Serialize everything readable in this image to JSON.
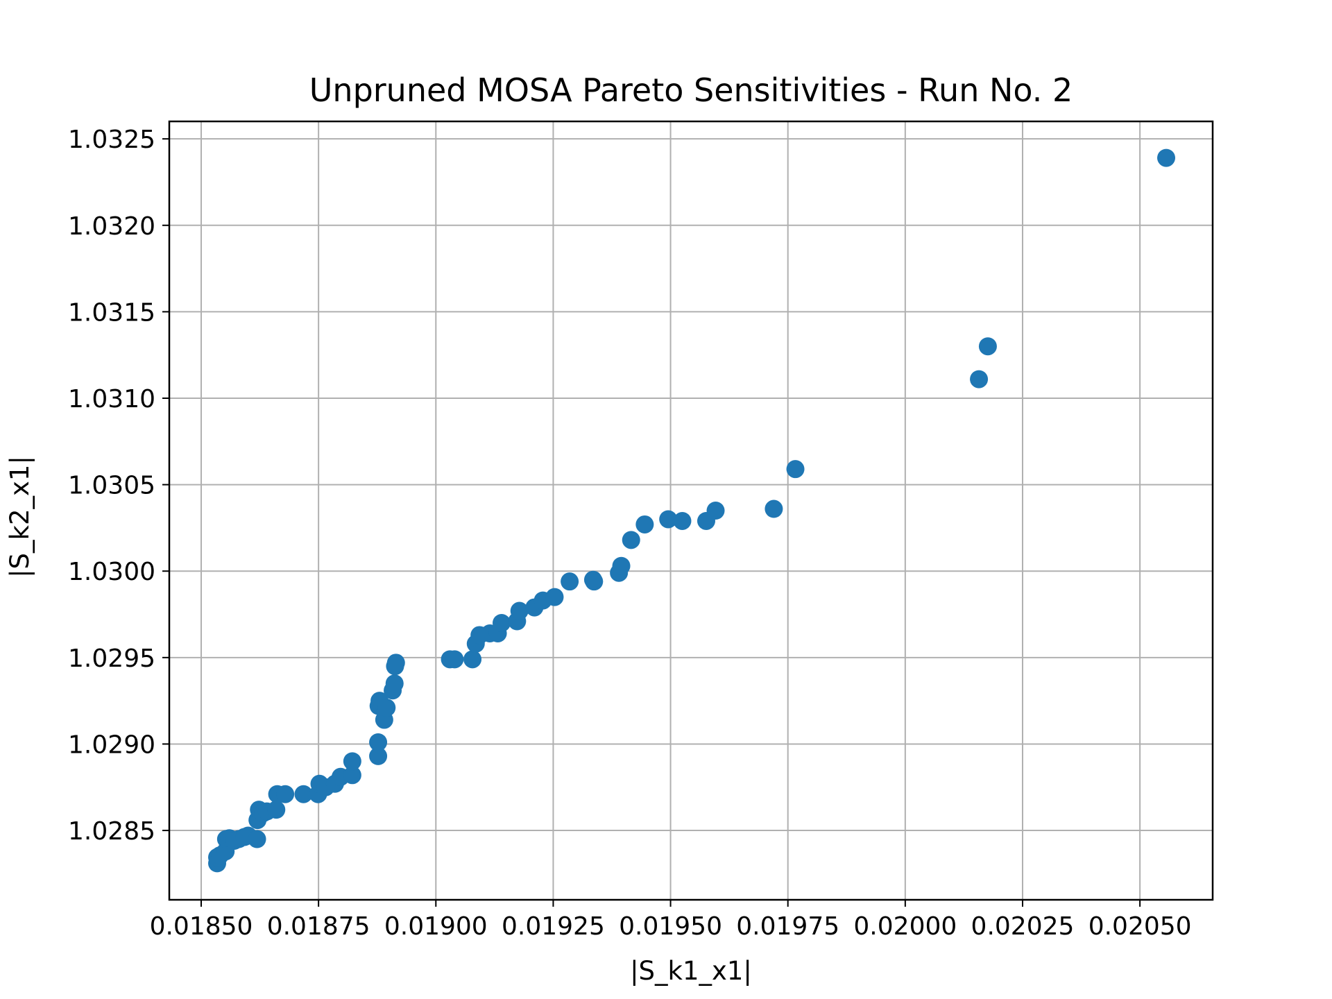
{
  "chart_data": {
    "type": "scatter",
    "title": "Unpruned MOSA Pareto Sensitivities - Run No. 2",
    "xlabel": "|S_k1_x1|",
    "ylabel": "|S_k2_x1|",
    "xlim": [
      0.018432,
      0.020655
    ],
    "ylim": [
      1.028099,
      1.032601
    ],
    "x_ticks": [
      0.0185,
      0.01875,
      0.019,
      0.01925,
      0.0195,
      0.01975,
      0.02,
      0.02025,
      0.0205
    ],
    "x_tick_labels": [
      "0.01850",
      "0.01875",
      "0.01900",
      "0.01925",
      "0.01950",
      "0.01975",
      "0.02000",
      "0.02025",
      "0.02050"
    ],
    "y_ticks": [
      1.0285,
      1.029,
      1.0295,
      1.03,
      1.0305,
      1.031,
      1.0315,
      1.032,
      1.0325
    ],
    "y_tick_labels": [
      "1.0285",
      "1.0290",
      "1.0295",
      "1.0300",
      "1.0305",
      "1.0310",
      "1.0315",
      "1.0320",
      "1.0325"
    ],
    "grid": true,
    "marker_color": "#1f77b4",
    "series": [
      {
        "points": [
          [
            0.018534,
            1.02831
          ],
          [
            0.018534,
            1.028345
          ],
          [
            0.01854,
            1.028356
          ],
          [
            0.018552,
            1.028379
          ],
          [
            0.018553,
            1.02845
          ],
          [
            0.01856,
            1.028455
          ],
          [
            0.01857,
            1.02844
          ],
          [
            0.01858,
            1.02845
          ],
          [
            0.018592,
            1.028462
          ],
          [
            0.0186,
            1.02847
          ],
          [
            0.018619,
            1.02845
          ],
          [
            0.01862,
            1.02856
          ],
          [
            0.018623,
            1.02862
          ],
          [
            0.018632,
            1.0286
          ],
          [
            0.01864,
            1.02861
          ],
          [
            0.01866,
            1.02862
          ],
          [
            0.018662,
            1.02871
          ],
          [
            0.018679,
            1.02871
          ],
          [
            0.018718,
            1.02871
          ],
          [
            0.018749,
            1.02871
          ],
          [
            0.018752,
            1.02877
          ],
          [
            0.018765,
            1.02875
          ],
          [
            0.018785,
            1.02877
          ],
          [
            0.018797,
            1.02881
          ],
          [
            0.018822,
            1.02882
          ],
          [
            0.018822,
            1.0289
          ],
          [
            0.018877,
            1.02893
          ],
          [
            0.018877,
            1.02901
          ],
          [
            0.018878,
            1.02922
          ],
          [
            0.01888,
            1.02925
          ],
          [
            0.01889,
            1.02914
          ],
          [
            0.018895,
            1.02921
          ],
          [
            0.018908,
            1.02931
          ],
          [
            0.018912,
            1.02935
          ],
          [
            0.018913,
            1.02945
          ],
          [
            0.018915,
            1.02947
          ],
          [
            0.01903,
            1.02949
          ],
          [
            0.01904,
            1.02949
          ],
          [
            0.019078,
            1.02949
          ],
          [
            0.019085,
            1.02958
          ],
          [
            0.019093,
            1.02963
          ],
          [
            0.019115,
            1.02964
          ],
          [
            0.019132,
            1.02964
          ],
          [
            0.01914,
            1.0297
          ],
          [
            0.019173,
            1.02971
          ],
          [
            0.019178,
            1.02977
          ],
          [
            0.01921,
            1.02979
          ],
          [
            0.019228,
            1.02983
          ],
          [
            0.019253,
            1.02985
          ],
          [
            0.019285,
            1.02994
          ],
          [
            0.019335,
            1.02995
          ],
          [
            0.019337,
            1.02994
          ],
          [
            0.01939,
            1.02999
          ],
          [
            0.019395,
            1.03003
          ],
          [
            0.019416,
            1.03018
          ],
          [
            0.019445,
            1.03027
          ],
          [
            0.019495,
            1.0303
          ],
          [
            0.019525,
            1.03029
          ],
          [
            0.019576,
            1.03029
          ],
          [
            0.019596,
            1.03035
          ],
          [
            0.01972,
            1.03036
          ],
          [
            0.019766,
            1.03059
          ],
          [
            0.020157,
            1.03111
          ],
          [
            0.020176,
            1.0313
          ],
          [
            0.020556,
            1.03239
          ]
        ]
      }
    ]
  }
}
